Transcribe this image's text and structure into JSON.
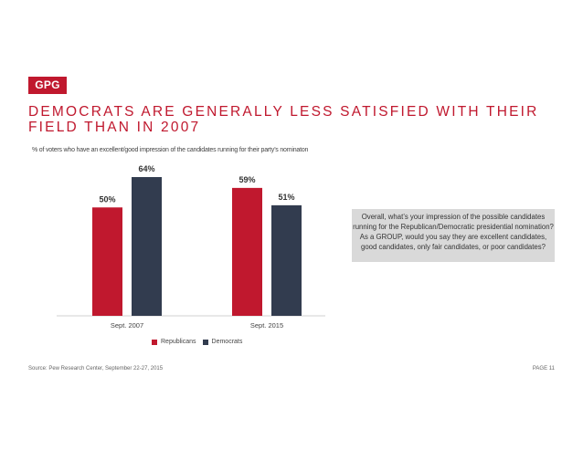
{
  "logo": "GPG",
  "title": "DEMOCRATS ARE GENERALLY LESS SATISFIED WITH THEIR FIELD THAN IN 2007",
  "subtitle": "% of voters who have an excellent/good impression of the candidates running for their party’s nominaton",
  "callout": "Overall, what’s your impression of the possible candidates running for the Republican/Democratic presidential nomination? As a GROUP, would you say they are excellent candidates, good candidates, only fair candidates, or poor candidates?",
  "source": "Source: Pew Research Center, September 22-27, 2015",
  "page": "PAGE 11",
  "colors": {
    "republicans": "#c0182e",
    "democrats": "#323c4f",
    "brand": "#c0182e"
  },
  "chart_data": {
    "type": "bar",
    "categories": [
      "Sept. 2007",
      "Sept. 2015"
    ],
    "series": [
      {
        "name": "Republicans",
        "values": [
          50,
          59
        ],
        "labels": [
          "50%",
          "59%"
        ]
      },
      {
        "name": "Democrats",
        "values": [
          64,
          51
        ],
        "labels": [
          "64%",
          "51%"
        ]
      }
    ],
    "ylim": [
      0,
      64
    ],
    "legend": "bottom"
  }
}
